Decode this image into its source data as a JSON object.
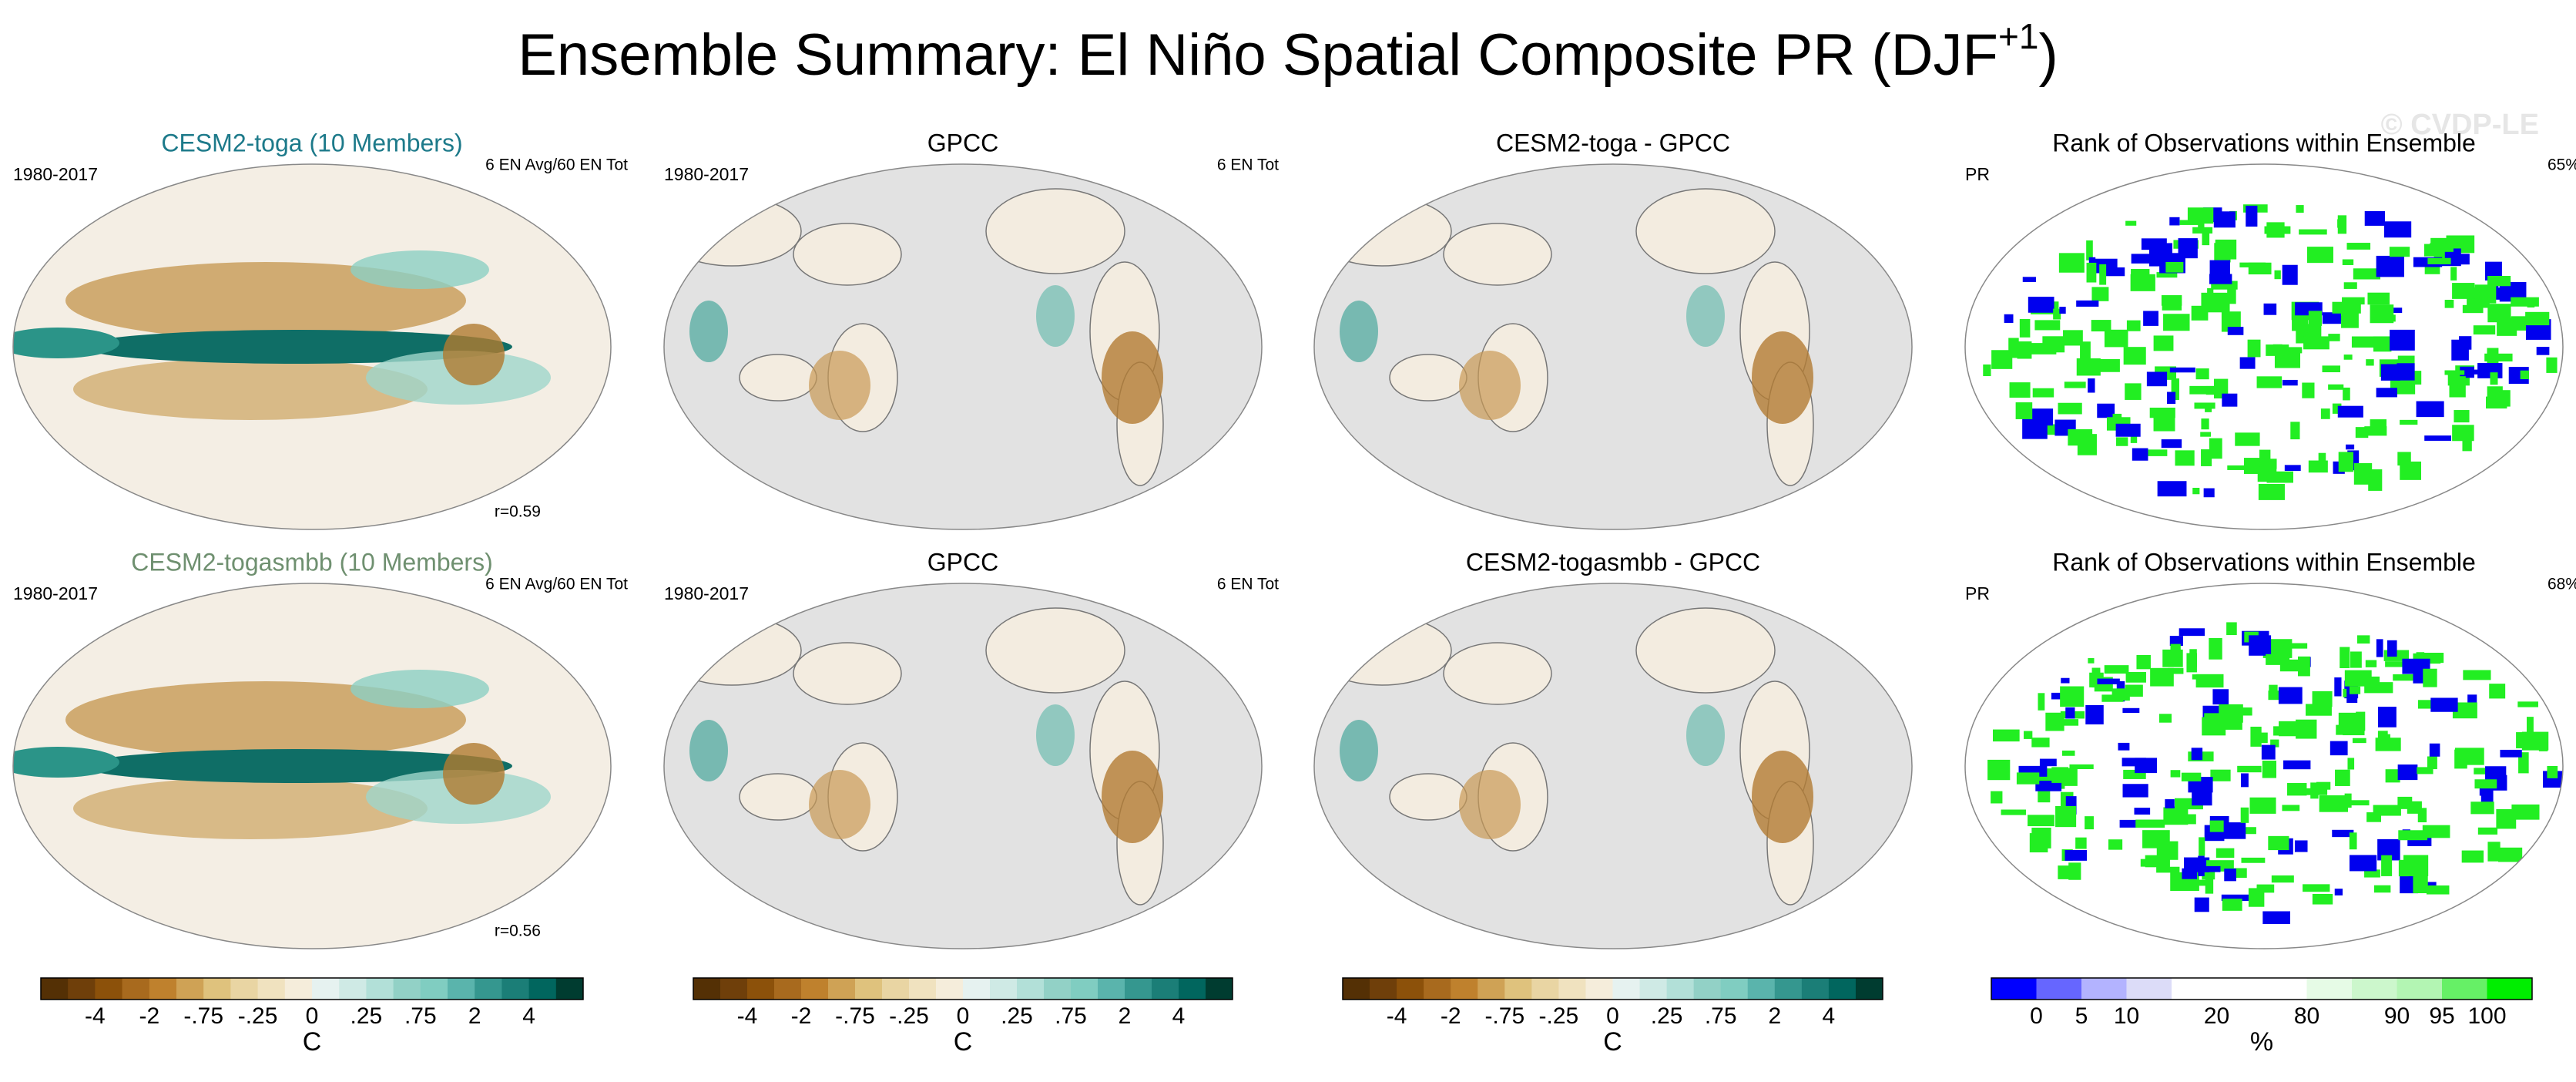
{
  "title": "Ensemble Summary: El Niño Spatial Composite PR (DJF",
  "title_superscript": "+1",
  "title_end": ")",
  "watermark": "© CVDP-LE",
  "rows": [
    [
      {
        "title": "CESM2-toga (10 Members)",
        "title_color": "#1d7a8a",
        "left": "1980-2017",
        "right": "6 EN Avg/60 EN Tot",
        "stat": "r=0.59"
      },
      {
        "title": "GPCC",
        "left": "1980-2017",
        "right": "6 EN Tot"
      },
      {
        "title": "CESM2-toga - GPCC"
      },
      {
        "title": "Rank of Observations within Ensemble",
        "left": "PR",
        "right": "65%"
      }
    ],
    [
      {
        "title": "CESM2-togasmbb (10 Members)",
        "title_color": "#6f9070",
        "left": "1980-2017",
        "right": "6 EN Avg/60 EN Tot",
        "stat": "r=0.56"
      },
      {
        "title": "GPCC",
        "left": "1980-2017",
        "right": "6 EN Tot"
      },
      {
        "title": "CESM2-togasmbb - GPCC"
      },
      {
        "title": "Rank of Observations within Ensemble",
        "left": "PR",
        "right": "68%"
      }
    ]
  ],
  "colorbars": [
    {
      "unit": "C",
      "colors": [
        "#543005",
        "#6f3f0a",
        "#8c510a",
        "#a86a1e",
        "#bf812d",
        "#cfa255",
        "#dfc27d",
        "#e9d5a3",
        "#f0e2bf",
        "#f5eddb",
        "#e6f2f0",
        "#cfeae5",
        "#b2e0d8",
        "#92d1c6",
        "#80cdc1",
        "#5ab4ac",
        "#35978f",
        "#1b7e77",
        "#01665e",
        "#003c30"
      ],
      "ticks": [
        null,
        "-4",
        null,
        "-2",
        null,
        "-.75",
        null,
        "-.25",
        null,
        "0",
        null,
        ".25",
        null,
        ".75",
        null,
        "2",
        null,
        "4",
        null
      ]
    },
    {
      "unit": "C",
      "colors": [
        "#543005",
        "#6f3f0a",
        "#8c510a",
        "#a86a1e",
        "#bf812d",
        "#cfa255",
        "#dfc27d",
        "#e9d5a3",
        "#f0e2bf",
        "#f5eddb",
        "#e6f2f0",
        "#cfeae5",
        "#b2e0d8",
        "#92d1c6",
        "#80cdc1",
        "#5ab4ac",
        "#35978f",
        "#1b7e77",
        "#01665e",
        "#003c30"
      ],
      "ticks": [
        null,
        "-4",
        null,
        "-2",
        null,
        "-.75",
        null,
        "-.25",
        null,
        "0",
        null,
        ".25",
        null,
        ".75",
        null,
        "2",
        null,
        "4",
        null
      ]
    },
    {
      "unit": "C",
      "colors": [
        "#543005",
        "#6f3f0a",
        "#8c510a",
        "#a86a1e",
        "#bf812d",
        "#cfa255",
        "#dfc27d",
        "#e9d5a3",
        "#f0e2bf",
        "#f5eddb",
        "#e6f2f0",
        "#cfeae5",
        "#b2e0d8",
        "#92d1c6",
        "#80cdc1",
        "#5ab4ac",
        "#35978f",
        "#1b7e77",
        "#01665e",
        "#003c30"
      ],
      "ticks": [
        null,
        "-4",
        null,
        "-2",
        null,
        "-.75",
        null,
        "-.25",
        null,
        "0",
        null,
        ".25",
        null,
        ".75",
        null,
        "2",
        null,
        "4",
        null
      ]
    },
    {
      "unit": "%",
      "colors": [
        "#0000ff",
        "#6666ff",
        "#b3b3ff",
        "#dcdcf8",
        "#ffffff",
        "#ffffff",
        "#ffffff",
        "#e6fbe6",
        "#ccf7cc",
        "#b3f5b3",
        "#66f066",
        "#00ee00"
      ],
      "ticks": [
        "0",
        "5",
        "10",
        null,
        "20",
        null,
        "80",
        null,
        "90",
        "95",
        "100"
      ]
    }
  ]
}
